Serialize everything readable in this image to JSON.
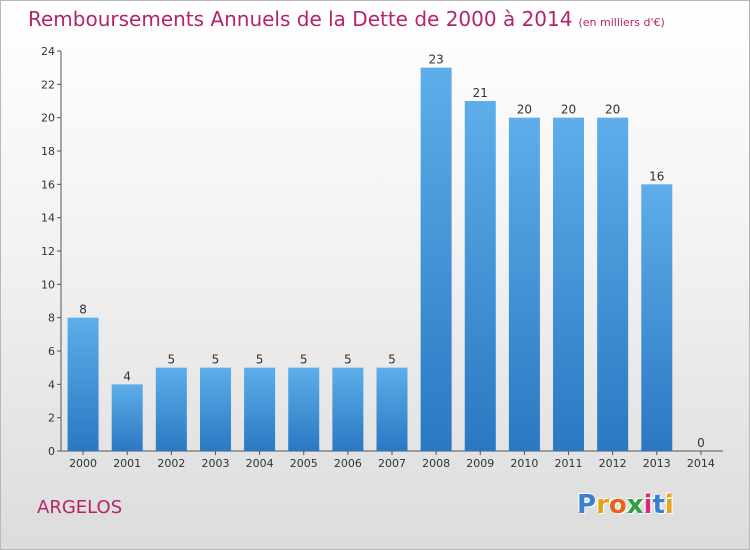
{
  "chart_data": {
    "type": "bar",
    "title": "Remboursements Annuels de la Dette de 2000 à 2014",
    "unit": "(en milliers d'€)",
    "categories": [
      "2000",
      "2001",
      "2002",
      "2003",
      "2004",
      "2005",
      "2006",
      "2007",
      "2008",
      "2009",
      "2010",
      "2011",
      "2012",
      "2013",
      "2014"
    ],
    "values": [
      8,
      4,
      5,
      5,
      5,
      5,
      5,
      5,
      23,
      21,
      20,
      20,
      20,
      16,
      0
    ],
    "ylim": [
      0,
      24
    ],
    "yticks": [
      0,
      2,
      4,
      6,
      8,
      10,
      12,
      14,
      16,
      18,
      20,
      22,
      24
    ],
    "grid": false,
    "bar_color": "#3b8fdc"
  },
  "place_name": "ARGELOS",
  "logo": {
    "letters": [
      "P",
      "r",
      "o",
      "x",
      "i",
      "t",
      "i"
    ],
    "colors": [
      "#3c7fd0",
      "#e8a21a",
      "#e8631a",
      "#2e9e3e",
      "#d42d7b",
      "#3c7fd0",
      "#e8a21a"
    ]
  }
}
